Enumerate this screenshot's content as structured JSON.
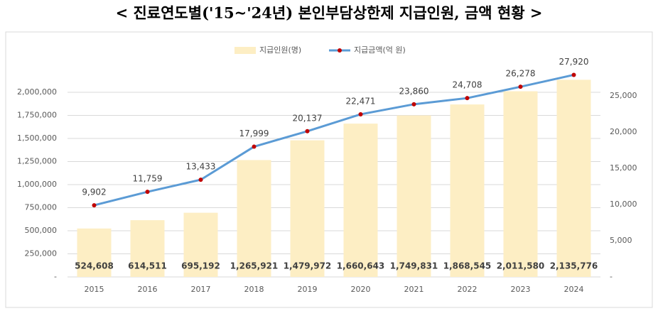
{
  "chart_data": {
    "type": "bar-line",
    "title": "< 진료연도별('15~'24년) 본인부담상한제 지급인원, 금액 현황 >",
    "categories": [
      "2015",
      "2016",
      "2017",
      "2018",
      "2019",
      "2020",
      "2021",
      "2022",
      "2023",
      "2024"
    ],
    "series": [
      {
        "name": "지급인원(명)",
        "type": "bar",
        "color": "#fdeec4",
        "values": [
          524608,
          614511,
          695192,
          1265921,
          1479972,
          1660643,
          1749831,
          1868545,
          2011580,
          2135776
        ],
        "value_labels": [
          "524,608",
          "614,511",
          "695,192",
          "1,265,921",
          "1,479,972",
          "1,660,643",
          "1,749,831",
          "1,868,545",
          "2,011,580",
          "2,135,776"
        ]
      },
      {
        "name": "지급금액(억 원)",
        "type": "line",
        "axis": "y2",
        "color": "#5b9bd5",
        "marker_color": "#c00000",
        "values": [
          9902,
          11759,
          13433,
          17999,
          20137,
          22471,
          23860,
          24708,
          26278,
          27920
        ],
        "value_labels": [
          "9,902",
          "11,759",
          "13,433",
          "17,999",
          "20,137",
          "22,471",
          "23,860",
          "24,708",
          "26,278",
          "27,920"
        ]
      }
    ],
    "ylim": [
      0,
      2250000
    ],
    "yticks": [
      {
        "value": 0,
        "label": "-"
      },
      {
        "value": 250000,
        "label": "250,000"
      },
      {
        "value": 500000,
        "label": "500,000"
      },
      {
        "value": 750000,
        "label": "750,000"
      },
      {
        "value": 1000000,
        "label": "1,000,000"
      },
      {
        "value": 1250000,
        "label": "1,250,000"
      },
      {
        "value": 1500000,
        "label": "1,500,000"
      },
      {
        "value": 1750000,
        "label": "1,750,000"
      },
      {
        "value": 2000000,
        "label": "2,000,000"
      }
    ],
    "y2lim": [
      0,
      28700
    ],
    "y2ticks": [
      {
        "value": 0,
        "label": "-"
      },
      {
        "value": 5000,
        "label": "5,000"
      },
      {
        "value": 10000,
        "label": "10,000"
      },
      {
        "value": 15000,
        "label": "15,000"
      },
      {
        "value": 20000,
        "label": "20,000"
      },
      {
        "value": 25000,
        "label": "25,000"
      }
    ],
    "grid": true
  }
}
